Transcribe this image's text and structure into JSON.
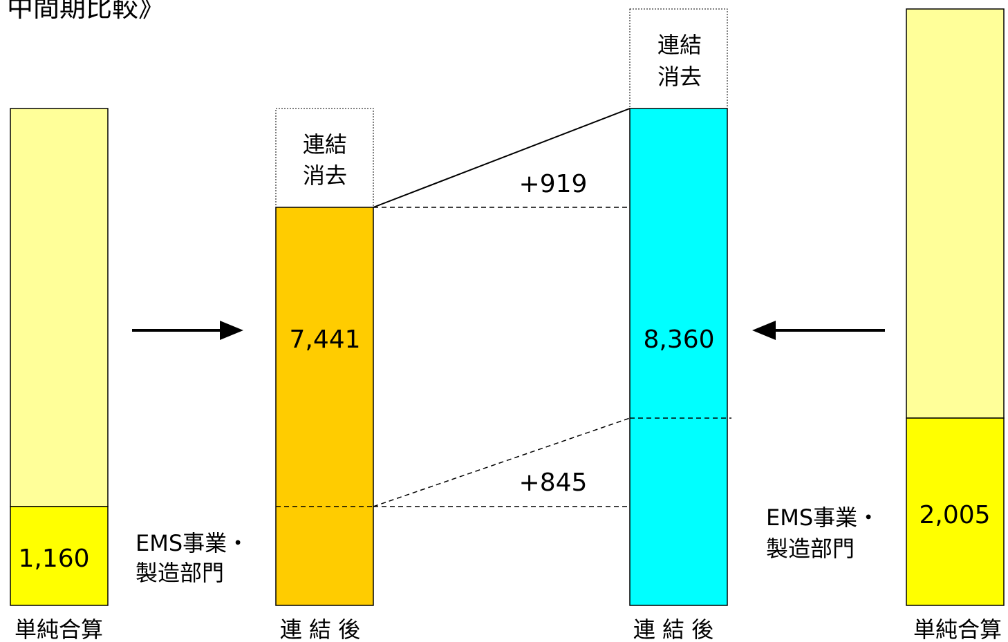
{
  "title": "中間期比較》",
  "elimination_label": [
    "連結",
    "消去"
  ],
  "segment_label": [
    "EMS事業・",
    "製造部門"
  ],
  "colors": {
    "simple_sum_fill": "#ffff99",
    "ems_segment_fill": "#ffff00",
    "left_consolidated_fill": "#ffcc00",
    "right_consolidated_fill": "#00ffff",
    "elimination_fill": "#ffffff"
  },
  "left_simple": {
    "segment_value": "1,160",
    "caption": "単純合算"
  },
  "left_consolidated": {
    "value": "7,441",
    "caption": "連 結 後"
  },
  "right_consolidated": {
    "value": "8,360",
    "caption": "連 結 後"
  },
  "right_simple": {
    "segment_value": "2,005",
    "caption": "単純合算"
  },
  "diff_total": "+919",
  "diff_segment": "+845",
  "arrows": {
    "left": "arrow-right-icon",
    "right": "arrow-left-icon"
  }
}
